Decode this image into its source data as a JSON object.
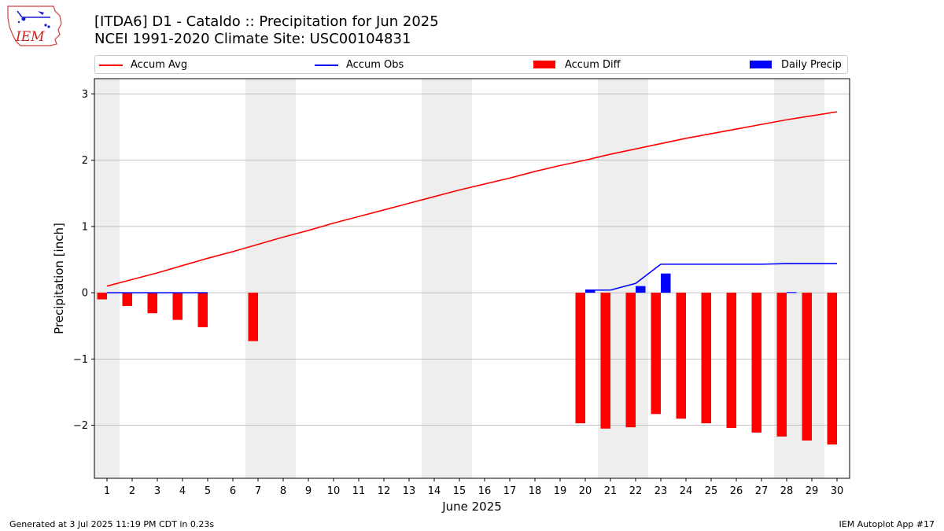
{
  "header": {
    "title_line1": "[ITDA6] D1 - Cataldo  :: Precipitation for Jun 2025",
    "title_line2": "NCEI 1991-2020 Climate Site: USC00104831",
    "logo_text": "IEM"
  },
  "legend": {
    "placement": "top",
    "items": [
      {
        "label": "Accum Avg",
        "color": "#ff0000",
        "kind": "line"
      },
      {
        "label": "Accum Obs",
        "color": "#0000ff",
        "kind": "line"
      },
      {
        "label": "Accum Diff",
        "color": "#ff0000",
        "kind": "bar"
      },
      {
        "label": "Daily Precip",
        "color": "#0000ff",
        "kind": "bar"
      }
    ]
  },
  "footer": {
    "generated": "Generated at 3 Jul 2025 11:19 PM CDT in 0.23s",
    "app": "IEM Autoplot App #17"
  },
  "chart_data": {
    "type": "bar",
    "title": "[ITDA6] D1 - Cataldo  :: Precipitation for Jun 2025",
    "subtitle": "NCEI 1991-2020 Climate Site: USC00104831",
    "xlabel": "June 2025",
    "ylabel": "Precipitation [inch]",
    "ylim": [
      -2.8,
      3.23
    ],
    "xlim": [
      0.5,
      30.5
    ],
    "yticks": [
      -2,
      -1,
      0,
      1,
      2,
      3
    ],
    "ytick_labels": [
      "−2",
      "−1",
      "0",
      "1",
      "2",
      "3"
    ],
    "grid": true,
    "weekend_shading": [
      [
        0.5,
        1.5
      ],
      [
        6.5,
        8.5
      ],
      [
        13.5,
        15.5
      ],
      [
        20.5,
        22.5
      ],
      [
        27.5,
        29.5
      ]
    ],
    "weekend_color": "#eeeeee",
    "x": [
      1,
      2,
      3,
      4,
      5,
      6,
      7,
      8,
      9,
      10,
      11,
      12,
      13,
      14,
      15,
      16,
      17,
      18,
      19,
      20,
      21,
      22,
      23,
      24,
      25,
      26,
      27,
      28,
      29,
      30
    ],
    "series": [
      {
        "name": "Accum Avg",
        "kind": "line",
        "color": "#ff0000",
        "values": [
          0.1,
          0.2,
          0.3,
          0.41,
          0.52,
          0.62,
          0.73,
          0.84,
          0.94,
          1.05,
          1.15,
          1.25,
          1.35,
          1.45,
          1.55,
          1.64,
          1.73,
          1.83,
          1.92,
          2.0,
          2.09,
          2.17,
          2.25,
          2.33,
          2.4,
          2.47,
          2.54,
          2.61,
          2.67,
          2.73
        ]
      },
      {
        "name": "Accum Obs",
        "kind": "line",
        "color": "#0000ff",
        "values": [
          0,
          0,
          0,
          0,
          0,
          null,
          null,
          null,
          null,
          null,
          null,
          null,
          null,
          null,
          null,
          null,
          null,
          null,
          null,
          0.04,
          0.04,
          0.14,
          0.43,
          0.43,
          0.43,
          0.43,
          0.43,
          0.44,
          0.44,
          0.44
        ]
      },
      {
        "name": "Accum Diff",
        "kind": "bar",
        "color": "#ff0000",
        "values": [
          -0.1,
          -0.2,
          -0.31,
          -0.41,
          -0.52,
          null,
          -0.73,
          null,
          null,
          null,
          null,
          null,
          null,
          null,
          null,
          null,
          null,
          null,
          null,
          -1.97,
          -2.05,
          -2.03,
          -1.83,
          -1.9,
          -1.97,
          -2.04,
          -2.11,
          -2.17,
          -2.23,
          -2.29
        ]
      },
      {
        "name": "Daily Precip",
        "kind": "bar",
        "color": "#0000ff",
        "values": [
          0,
          0,
          0,
          0,
          0,
          null,
          null,
          null,
          null,
          null,
          null,
          null,
          null,
          null,
          null,
          null,
          null,
          null,
          null,
          0.04,
          0,
          0.1,
          0.29,
          0,
          0,
          0,
          0,
          0.01,
          0,
          0
        ]
      }
    ]
  }
}
